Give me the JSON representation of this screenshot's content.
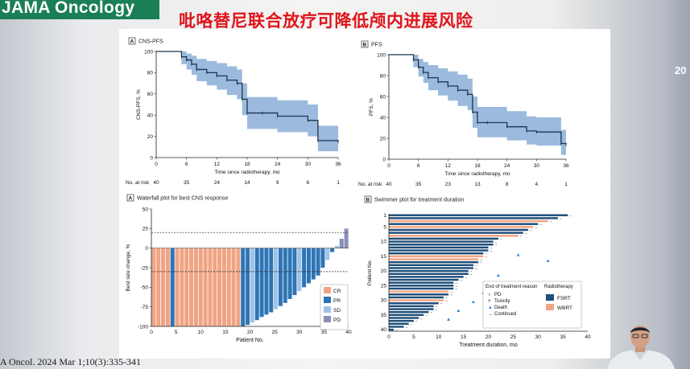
{
  "header": {
    "journal": "JAMA Oncology",
    "headline": "吡咯替尼联合放疗可降低颅内进展风险",
    "edge_text": "20"
  },
  "footer": {
    "citation": "A Oncol. 2024 Mar 1;10(3):335-341"
  },
  "colors": {
    "journal_bar": "#1b7f55",
    "headline": "#e0141b",
    "km_line": "#1d3550",
    "km_ci": "#7aa3d2",
    "salmon": "#f0a484",
    "blue_dark": "#1f4e79",
    "blue_mid": "#2e75b6",
    "blue_light": "#9dc3e6",
    "purple": "#8c8fb8"
  },
  "chart_data": [
    {
      "id": "cns-pfs",
      "type": "line",
      "panel": "A",
      "title": "CNS-PFS",
      "ylabel": "CNS-PFS, %",
      "xlabel": "Time since radiotherapy, mo",
      "xlim": [
        0,
        36
      ],
      "ylim": [
        0,
        100
      ],
      "xticks": [
        "0",
        "6",
        "12",
        "18",
        "24",
        "30",
        "36"
      ],
      "yticks": [
        "0",
        "20",
        "40",
        "60",
        "80",
        "100"
      ],
      "x": [
        0,
        4,
        5,
        6,
        7,
        8,
        10,
        12,
        14,
        16,
        17,
        18,
        21,
        24,
        30,
        32,
        36
      ],
      "y": [
        100,
        100,
        95,
        92,
        88,
        83,
        80,
        77,
        73,
        70,
        55,
        42,
        42,
        39,
        35,
        16,
        15
      ],
      "ci_lower": [
        100,
        100,
        88,
        83,
        78,
        72,
        68,
        64,
        59,
        55,
        40,
        27,
        27,
        24,
        20,
        6,
        5
      ],
      "ci_upper": [
        100,
        100,
        100,
        98,
        96,
        93,
        91,
        89,
        86,
        83,
        70,
        57,
        57,
        54,
        50,
        30,
        30
      ],
      "at_risk_label": "No. at risk",
      "at_risk": [
        "40",
        "35",
        "24",
        "14",
        "9",
        "6",
        "1"
      ]
    },
    {
      "id": "pfs",
      "type": "line",
      "panel": "B",
      "title": "PFS",
      "ylabel": "PFS, %",
      "xlabel": "Time since radiotherapy, mo",
      "xlim": [
        0,
        36
      ],
      "ylim": [
        0,
        100
      ],
      "xticks": [
        "0",
        "6",
        "12",
        "18",
        "24",
        "30",
        "36"
      ],
      "yticks": [
        "0",
        "20",
        "40",
        "60",
        "80",
        "100"
      ],
      "x": [
        0,
        4,
        5,
        6,
        7,
        8,
        10,
        12,
        14,
        16,
        17,
        18,
        20,
        24,
        28,
        30,
        35,
        36
      ],
      "y": [
        100,
        100,
        95,
        88,
        83,
        78,
        74,
        70,
        66,
        62,
        45,
        35,
        35,
        31,
        27,
        26,
        15,
        14
      ],
      "ci_lower": [
        100,
        100,
        88,
        79,
        73,
        66,
        61,
        56,
        51,
        47,
        30,
        21,
        21,
        18,
        14,
        13,
        4,
        3
      ],
      "ci_upper": [
        100,
        100,
        100,
        96,
        93,
        90,
        87,
        84,
        81,
        77,
        60,
        50,
        50,
        46,
        41,
        40,
        28,
        27
      ],
      "at_risk_label": "No. at risk",
      "at_risk": [
        "40",
        "35",
        "23",
        "13",
        "8",
        "4",
        "1"
      ]
    },
    {
      "id": "waterfall",
      "type": "bar",
      "panel": "A",
      "title": "Waterfall plot for best CNS response",
      "ylabel": "Best size change, %",
      "xlabel": "Patient No.",
      "ylim": [
        -100,
        50
      ],
      "yticks": [
        "50",
        "25",
        "0",
        "-25",
        "-50",
        "-75",
        "-100"
      ],
      "xticks": [
        "0",
        "5",
        "10",
        "15",
        "20",
        "25",
        "30",
        "35",
        "40"
      ],
      "values": [
        -100,
        -100,
        -100,
        -100,
        -100,
        -100,
        -100,
        -100,
        -100,
        -100,
        -100,
        -100,
        -100,
        -100,
        -100,
        -100,
        -100,
        -100,
        -100,
        -100,
        -98,
        -95,
        -92,
        -88,
        -85,
        -82,
        -78,
        -74,
        -70,
        -65,
        -60,
        -55,
        -50,
        -45,
        -40,
        -35,
        -25,
        -15,
        -5,
        3,
        12,
        25
      ],
      "categories_of_response": [
        "CR",
        "CR",
        "CR",
        "CR",
        "PR",
        "CR",
        "CR",
        "CR",
        "CR",
        "CR",
        "CR",
        "CR",
        "CR",
        "CR",
        "CR",
        "CR",
        "CR",
        "CR",
        "CR",
        "PR",
        "PR",
        "SD",
        "PR",
        "PR",
        "PR",
        "PR",
        "SD",
        "PR",
        "PR",
        "PR",
        "PR",
        "SD",
        "PR",
        "PR",
        "PR",
        "PR",
        "PR",
        "SD",
        "PR",
        "SD",
        "PD",
        "PD"
      ],
      "reference_lines": [
        20,
        -30
      ],
      "legend": [
        "CR",
        "PR",
        "SD",
        "PD"
      ]
    },
    {
      "id": "swimmer",
      "type": "bar",
      "panel": "B",
      "title": "Swimmer plot for treatment duration",
      "ylabel": "Patient No.",
      "xlabel": "Treatment duration, mo",
      "xlim": [
        0,
        40
      ],
      "xticks": [
        "0",
        "5",
        "10",
        "15",
        "20",
        "25",
        "30",
        "35",
        "40"
      ],
      "yticks": [
        "1",
        "5",
        "10",
        "15",
        "20",
        "25",
        "30",
        "35",
        "40"
      ],
      "values": [
        36,
        34,
        32,
        30,
        29,
        28,
        27,
        26,
        22,
        21,
        21,
        20,
        20,
        19,
        19,
        18,
        18,
        17,
        17,
        16,
        16,
        15,
        14,
        13,
        13,
        13,
        12,
        12,
        11,
        11,
        10,
        9,
        9,
        8,
        7,
        6,
        5,
        4,
        3,
        1
      ],
      "radiotherapy": [
        "FSRT",
        "FSRT",
        "WBRT",
        "FSRT",
        "WBRT",
        "FSRT",
        "FSRT",
        "WBRT",
        "FSRT",
        "FSRT",
        "FSRT",
        "FSRT",
        "FSRT",
        "FSRT",
        "WBRT",
        "WBRT",
        "FSRT",
        "FSRT",
        "FSRT",
        "FSRT",
        "FSRT",
        "FSRT",
        "FSRT",
        "FSRT",
        "FSRT",
        "FSRT",
        "WBRT",
        "FSRT",
        "FSRT",
        "WBRT",
        "FSRT",
        "FSRT",
        "FSRT",
        "FSRT",
        "FSRT",
        "FSRT",
        "FSRT",
        "FSRT",
        "FSRT",
        "FSRT"
      ],
      "legend_end_title": "End of treatment reason",
      "legend_end": [
        "PD",
        "Toxicity",
        "Death",
        "Continued"
      ],
      "legend_rt_title": "Radiotherapy",
      "legend_rt": [
        "FSRT",
        "WBRT"
      ]
    }
  ]
}
